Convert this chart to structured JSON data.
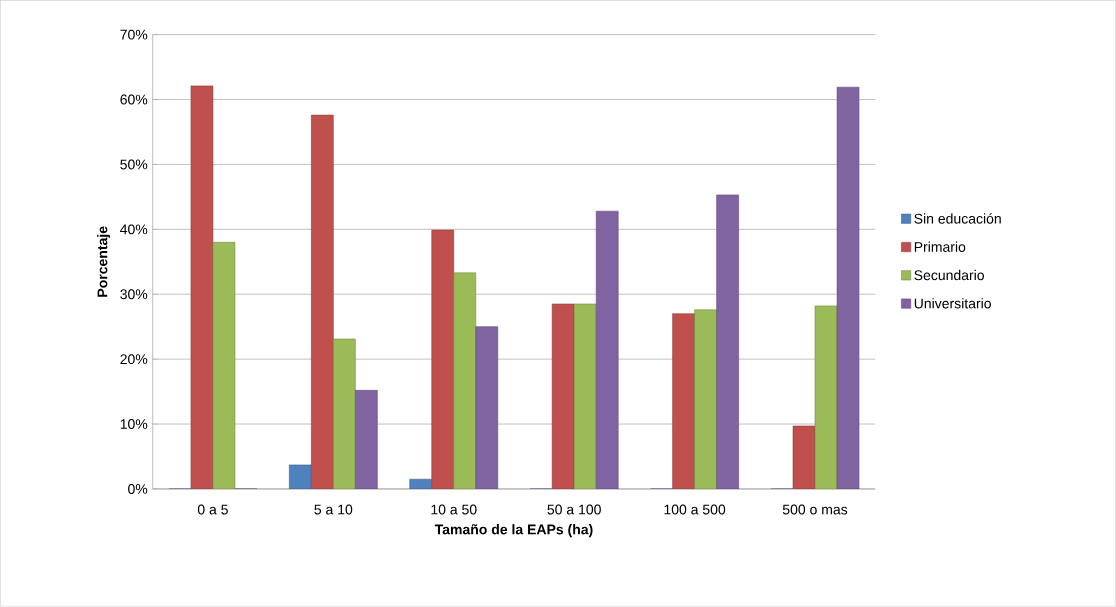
{
  "chart_data": {
    "type": "bar",
    "xlabel": "Tamaño de la EAPs (ha)",
    "ylabel": "Porcentaje",
    "categories": [
      "0 a 5",
      "5 a 10",
      "10 a 50",
      "50 a 100",
      "100 a 500",
      "500 o mas"
    ],
    "series": [
      {
        "name": "Sin educación",
        "color": "#4f81bd",
        "values": [
          0,
          3.7,
          1.5,
          0,
          0,
          0
        ]
      },
      {
        "name": "Primario",
        "color": "#c0504d",
        "values": [
          62.1,
          57.6,
          39.9,
          28.5,
          27,
          9.7
        ]
      },
      {
        "name": "Secundario",
        "color": "#9bbb59",
        "values": [
          38,
          23.1,
          33.3,
          28.5,
          27.6,
          28.2
        ]
      },
      {
        "name": "Universitario",
        "color": "#8064a2",
        "values": [
          0,
          15.2,
          25,
          42.8,
          45.3,
          61.9
        ]
      }
    ],
    "ylim": [
      0,
      70
    ],
    "yticks": [
      {
        "value": 0,
        "label": "0%"
      },
      {
        "value": 10,
        "label": "10%"
      },
      {
        "value": 20,
        "label": "20%"
      },
      {
        "value": 30,
        "label": "30%"
      },
      {
        "value": 40,
        "label": "40%"
      },
      {
        "value": 50,
        "label": "50%"
      },
      {
        "value": 60,
        "label": "60%"
      },
      {
        "value": 70,
        "label": "70%"
      }
    ],
    "grid": "y",
    "legend": "right"
  }
}
